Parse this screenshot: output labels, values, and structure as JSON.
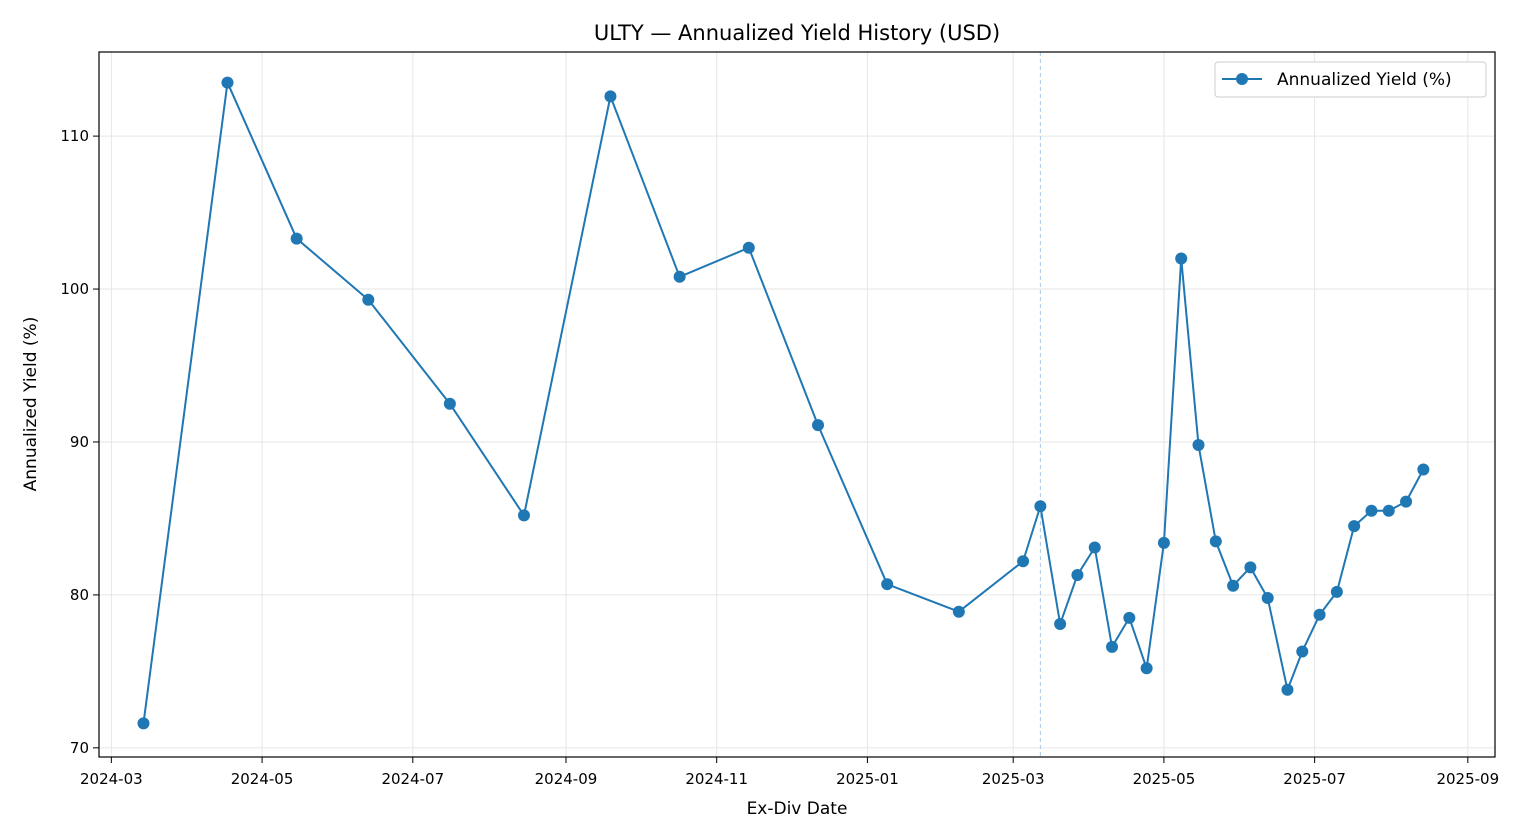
{
  "chart_data": {
    "type": "line",
    "title": "ULTY — Annualized Yield History (USD)",
    "xlabel": "Ex-Div Date",
    "ylabel": "Annualized Yield (%)",
    "x_ticks": [
      "2024-03",
      "2024-05",
      "2024-07",
      "2024-09",
      "2024-11",
      "2025-01",
      "2025-03",
      "2025-05",
      "2025-07",
      "2025-09"
    ],
    "y_ticks": [
      70,
      80,
      90,
      100,
      110
    ],
    "ylim": [
      69.4,
      115.5
    ],
    "xlim": [
      "2024-02-25",
      "2025-09-12"
    ],
    "grid": true,
    "legend_position": "top-right",
    "reference_line_x": "2025-03-12",
    "colors": {
      "series": "#1f77b4",
      "grid": "#e6e6e6",
      "reference": "#a8c8e8"
    },
    "series": [
      {
        "name": "Annualized Yield (%)",
        "x": [
          "2024-03-14",
          "2024-04-17",
          "2024-05-15",
          "2024-06-13",
          "2024-07-16",
          "2024-08-15",
          "2024-09-19",
          "2024-10-17",
          "2024-11-14",
          "2024-12-12",
          "2025-01-09",
          "2025-02-07",
          "2025-03-05",
          "2025-03-12",
          "2025-03-20",
          "2025-03-27",
          "2025-04-03",
          "2025-04-10",
          "2025-04-17",
          "2025-04-24",
          "2025-05-01",
          "2025-05-08",
          "2025-05-15",
          "2025-05-22",
          "2025-05-29",
          "2025-06-05",
          "2025-06-12",
          "2025-06-20",
          "2025-06-26",
          "2025-07-03",
          "2025-07-10",
          "2025-07-17",
          "2025-07-24",
          "2025-07-31",
          "2025-08-07",
          "2025-08-14"
        ],
        "values": [
          71.6,
          113.5,
          103.3,
          99.3,
          92.5,
          85.2,
          112.6,
          100.8,
          102.7,
          91.1,
          80.7,
          78.9,
          82.2,
          85.8,
          78.1,
          81.3,
          83.1,
          76.6,
          78.5,
          75.2,
          83.4,
          102.0,
          89.8,
          83.5,
          80.6,
          81.8,
          79.8,
          73.8,
          76.3,
          78.7,
          80.2,
          84.5,
          85.5,
          85.5,
          86.1,
          88.2
        ]
      }
    ]
  }
}
